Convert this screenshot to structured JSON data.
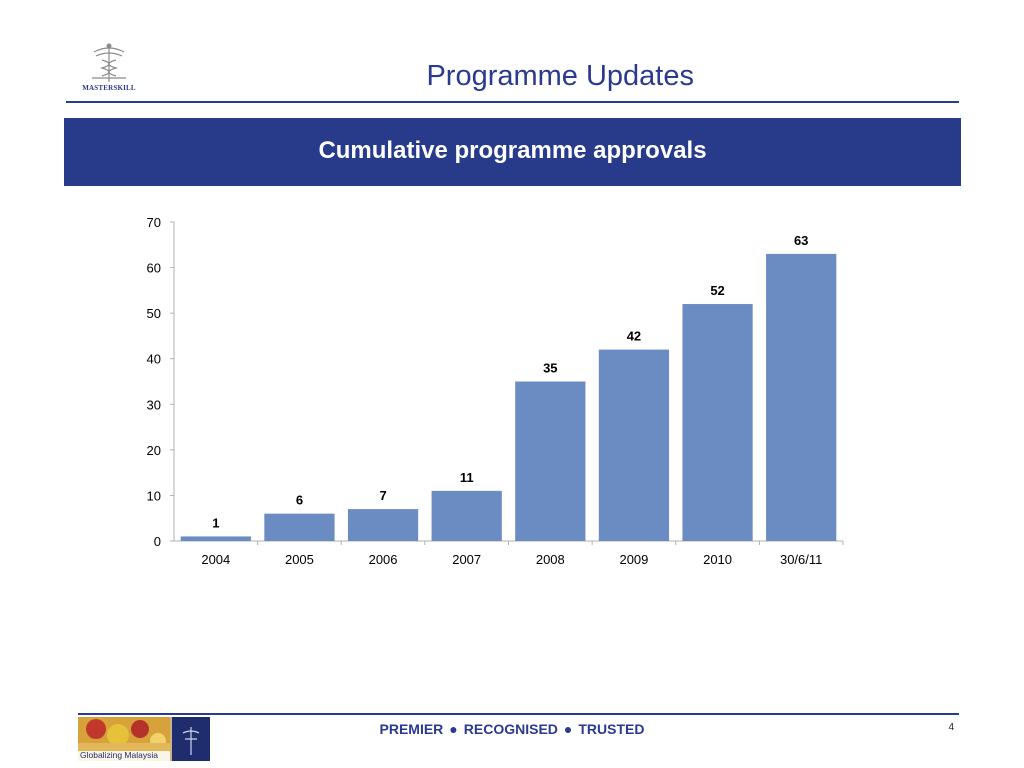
{
  "header": {
    "logo_text": "MASTERSKILL",
    "title": "Programme Updates"
  },
  "banner": {
    "title": "Cumulative programme approvals"
  },
  "chart_data": {
    "type": "bar",
    "categories": [
      "2004",
      "2005",
      "2006",
      "2007",
      "2008",
      "2009",
      "2010",
      "30/6/11"
    ],
    "values": [
      1,
      6,
      7,
      11,
      35,
      42,
      52,
      63
    ],
    "title": "",
    "xlabel": "",
    "ylabel": "",
    "ylim": [
      0,
      70
    ],
    "yticks": [
      0,
      10,
      20,
      30,
      40,
      50,
      60,
      70
    ],
    "grid": false,
    "data_labels": true,
    "bar_color": "#6b8cc3"
  },
  "footer": {
    "image_caption": "Globalizing Malaysia",
    "tagline": [
      "PREMIER",
      "RECOGNISED",
      "TRUSTED"
    ],
    "separator": "●",
    "page_number": "4"
  },
  "colors": {
    "brand_blue": "#2b3a8f",
    "banner_blue": "#283a8a"
  }
}
